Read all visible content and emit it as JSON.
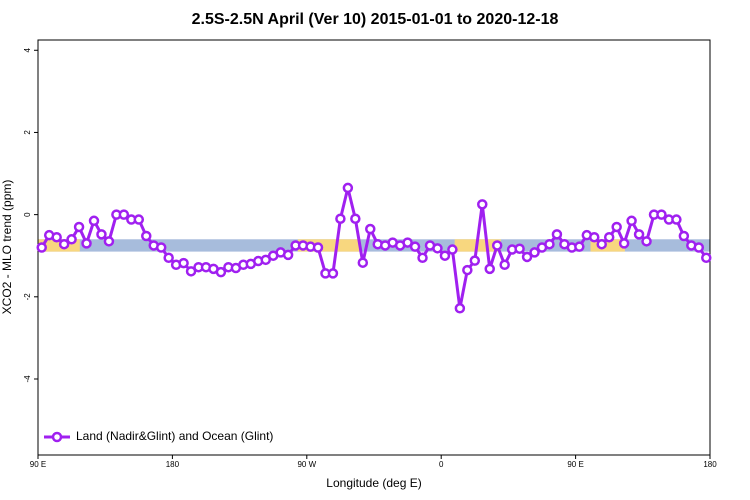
{
  "chart_data": {
    "type": "line",
    "title": "2.5S-2.5N April (Ver 10)   2015-01-01 to 2020-12-18",
    "x_label": "Longitude (deg E)",
    "y_label": "XCO2 - MLO trend (ppm)",
    "xlim": [
      90,
      540
    ],
    "xticks": [
      {
        "value": 90,
        "label": "90 E"
      },
      180,
      {
        "value": 270,
        "label": "90 W"
      },
      {
        "value": 360,
        "label": "0"
      },
      {
        "value": 450,
        "label": "90 E"
      },
      {
        "value": 540,
        "label": "180"
      }
    ],
    "ylim": [
      -5.85,
      4.25
    ],
    "yticks": [
      4,
      2,
      0,
      -2,
      -4
    ],
    "legend": "bottom-left",
    "band": {
      "y": [
        -0.9,
        -0.6
      ],
      "color": "#a7bcdc",
      "segments": [
        {
          "x": [
            90,
            118
          ],
          "color": "#f8d77f"
        },
        {
          "x": [
            264,
            305
          ],
          "color": "#f8d77f"
        },
        {
          "x": [
            369,
            400
          ],
          "color": "#f8d77f"
        },
        {
          "x": [
            460,
            483
          ],
          "color": "#f8d77f"
        }
      ]
    },
    "x": [
      92.5,
      97.5,
      102.5,
      107.5,
      112.5,
      117.5,
      122.5,
      127.5,
      132.5,
      137.5,
      142.5,
      147.5,
      152.5,
      157.5,
      162.5,
      167.5,
      172.5,
      177.5,
      182.5,
      187.5,
      192.5,
      197.5,
      202.5,
      207.5,
      212.5,
      217.5,
      222.5,
      227.5,
      232.5,
      237.5,
      242.5,
      247.5,
      252.5,
      257.5,
      262.5,
      267.5,
      272.5,
      277.5,
      282.5,
      287.5,
      292.5,
      297.5,
      302.5,
      307.5,
      312.5,
      317.5,
      322.5,
      327.5,
      332.5,
      337.5,
      342.5,
      347.5,
      352.5,
      357.5,
      362.5,
      367.5,
      372.5,
      377.5,
      382.5,
      387.5,
      392.5,
      397.5,
      402.5,
      407.5,
      412.5,
      417.5,
      422.5,
      427.5,
      432.5,
      437.5,
      442.5,
      447.5,
      452.5,
      457.5,
      462.5,
      467.5,
      472.5,
      477.5,
      482.5,
      487.5,
      492.5,
      497.5,
      502.5,
      507.5,
      512.5,
      517.5,
      522.5,
      527.5,
      532.5,
      537.5
    ],
    "series": [
      {
        "name": "Land (Nadir&Glint) and Ocean (Glint)",
        "color": "#a020f0",
        "values": [
          -0.8,
          -0.5,
          -0.55,
          -0.72,
          -0.6,
          -0.3,
          -0.7,
          -0.15,
          -0.48,
          -0.65,
          0.0,
          0.0,
          -0.12,
          -0.12,
          -0.52,
          -0.75,
          -0.8,
          -1.05,
          -1.22,
          -1.18,
          -1.38,
          -1.28,
          -1.28,
          -1.32,
          -1.4,
          -1.28,
          -1.3,
          -1.22,
          -1.2,
          -1.13,
          -1.1,
          -1.0,
          -0.92,
          -0.98,
          -0.75,
          -0.75,
          -0.78,
          -0.8,
          -1.43,
          -1.43,
          -0.1,
          0.65,
          -0.1,
          -1.17,
          -0.35,
          -0.72,
          -0.75,
          -0.68,
          -0.75,
          -0.68,
          -0.78,
          -1.05,
          -0.75,
          -0.82,
          -1.0,
          -0.85,
          -2.28,
          -1.35,
          -1.12,
          0.25,
          -1.32,
          -0.75,
          -1.22,
          -0.85,
          -0.83,
          -1.03,
          -0.92,
          -0.8,
          -0.72,
          -0.48,
          -0.72,
          -0.8,
          -0.78,
          -0.5,
          -0.55,
          -0.72,
          -0.55,
          -0.3,
          -0.7,
          -0.15,
          -0.48,
          -0.65,
          0.0,
          0.0,
          -0.12,
          -0.12,
          -0.52,
          -0.75,
          -0.8,
          -1.05
        ]
      }
    ]
  }
}
